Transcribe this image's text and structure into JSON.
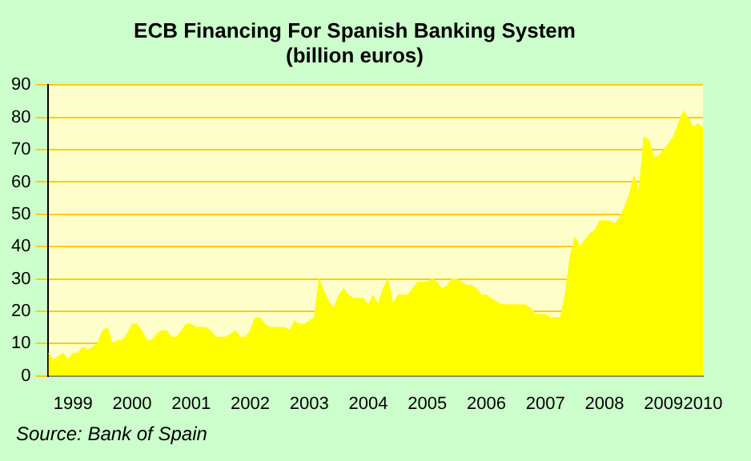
{
  "chart_data": {
    "type": "area",
    "title": "ECB Financing For Spanish Banking System",
    "subtitle": "(billion euros)",
    "annotations": [
      "Source: Bank of Spain"
    ],
    "categories": [
      null,
      null,
      null,
      null,
      null,
      "1999",
      null,
      null,
      null,
      null,
      null,
      null,
      null,
      null,
      null,
      null,
      null,
      "2000",
      null,
      null,
      null,
      null,
      null,
      null,
      null,
      null,
      null,
      null,
      null,
      "2001",
      null,
      null,
      null,
      null,
      null,
      null,
      null,
      null,
      null,
      null,
      null,
      "2002",
      null,
      null,
      null,
      null,
      null,
      null,
      null,
      null,
      null,
      null,
      null,
      "2003",
      null,
      null,
      null,
      null,
      null,
      null,
      null,
      null,
      null,
      null,
      null,
      "2004",
      null,
      null,
      null,
      null,
      null,
      null,
      null,
      null,
      null,
      null,
      null,
      "2005",
      null,
      null,
      null,
      null,
      null,
      null,
      null,
      null,
      null,
      null,
      null,
      "2006",
      null,
      null,
      null,
      null,
      null,
      null,
      null,
      null,
      null,
      null,
      null,
      "2007",
      null,
      null,
      null,
      null,
      null,
      null,
      null,
      null,
      null,
      null,
      null,
      "2008",
      null,
      null,
      null,
      null,
      null,
      null,
      null,
      null,
      null,
      null,
      null,
      "2009",
      null,
      null,
      null,
      null,
      null,
      null,
      null,
      "2010"
    ],
    "series": [
      {
        "color": "#ffff00",
        "values": [
          7,
          5,
          6,
          7,
          5,
          7,
          7,
          9,
          8,
          9,
          10,
          14,
          15,
          10,
          11,
          11,
          13,
          16,
          16,
          14,
          11,
          11,
          13,
          14,
          14,
          12,
          12,
          14,
          16,
          16,
          15,
          15,
          15,
          14,
          12,
          12,
          12,
          13,
          14,
          12,
          12,
          14,
          18,
          18,
          16,
          15,
          15,
          15,
          15,
          14,
          17,
          16,
          16,
          17,
          18,
          30,
          26,
          23,
          21,
          25,
          27,
          25,
          24,
          24,
          24,
          22,
          25,
          22,
          27,
          30,
          22,
          25,
          25,
          25,
          27,
          29,
          29,
          29,
          30,
          29,
          27,
          28,
          30,
          30,
          29,
          28,
          28,
          27,
          25,
          25,
          24,
          23,
          22,
          22,
          22,
          22,
          22,
          22,
          21,
          19,
          19,
          19,
          18,
          18,
          18,
          25,
          37,
          43,
          40,
          42,
          44,
          45,
          48,
          48,
          48,
          47,
          49,
          52,
          56,
          62,
          57,
          74,
          73,
          68,
          68,
          70,
          72,
          74,
          78,
          82,
          80,
          77,
          78,
          77
        ]
      }
    ],
    "ylim": [
      0,
      90
    ],
    "yticks": [
      0,
      10,
      20,
      30,
      40,
      50,
      60,
      70,
      80,
      90
    ],
    "grid": "y",
    "legend": false
  }
}
